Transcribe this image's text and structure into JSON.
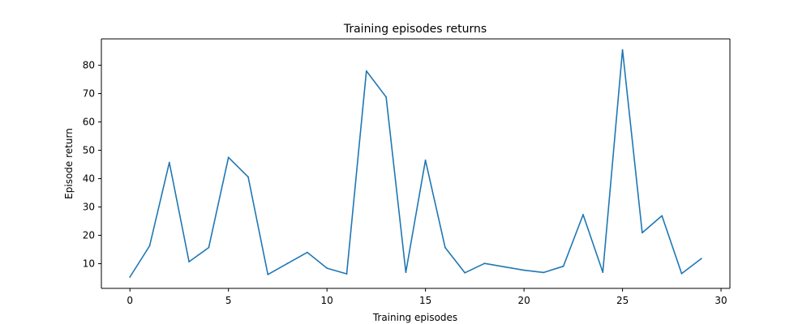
{
  "chart_data": {
    "type": "line",
    "title": "Training episodes returns",
    "xlabel": "Training episodes",
    "ylabel": "Episode return",
    "xlim": [
      -1.45,
      30.45
    ],
    "ylim": [
      1.3,
      89.3
    ],
    "xticks": [
      0,
      5,
      10,
      15,
      20,
      25,
      30
    ],
    "yticks": [
      10,
      20,
      30,
      40,
      50,
      60,
      70,
      80
    ],
    "grid": false,
    "legend": "none",
    "series": [
      {
        "color": "#1f77b4",
        "x": [
          0,
          1,
          2,
          3,
          4,
          5,
          6,
          7,
          8,
          9,
          10,
          11,
          12,
          13,
          14,
          15,
          16,
          17,
          18,
          19,
          20,
          21,
          22,
          23,
          24,
          25,
          26,
          27,
          28,
          29
        ],
        "y": [
          5.3,
          16.3,
          45.7,
          10.7,
          15.7,
          47.5,
          40.6,
          6.2,
          10.1,
          14.0,
          8.4,
          6.4,
          78.0,
          68.8,
          7.0,
          46.5,
          15.7,
          6.8,
          10.1,
          8.9,
          7.7,
          6.9,
          9.1,
          27.3,
          7.0,
          85.4,
          20.9,
          26.9,
          6.5,
          11.8
        ]
      }
    ]
  }
}
